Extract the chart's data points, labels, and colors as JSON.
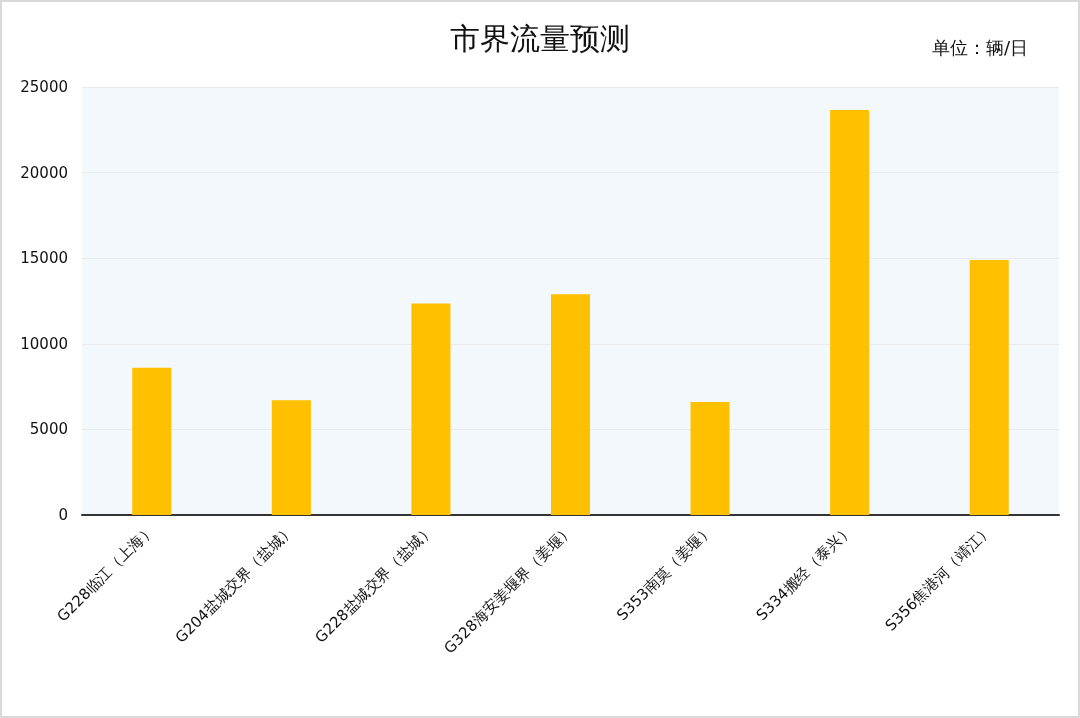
{
  "chart_data": {
    "type": "bar",
    "title": "市界流量预测",
    "annotations": [
      "单位：辆/日"
    ],
    "categories": [
      "G228临江（上海）",
      "G204盐城交界（盐城）",
      "G228盐城交界（盐城）",
      "G328海安姜堰界（姜堰）",
      "S353南莫（姜堰）",
      "S334搬经（泰兴）",
      "S356焦港河（靖江）"
    ],
    "values": [
      8600,
      6700,
      12350,
      12900,
      6600,
      23650,
      14900
    ],
    "color": "#ffc000",
    "ylim": [
      0,
      25000
    ],
    "yticks": [
      0,
      5000,
      10000,
      15000,
      20000,
      25000
    ],
    "grid": "y"
  }
}
